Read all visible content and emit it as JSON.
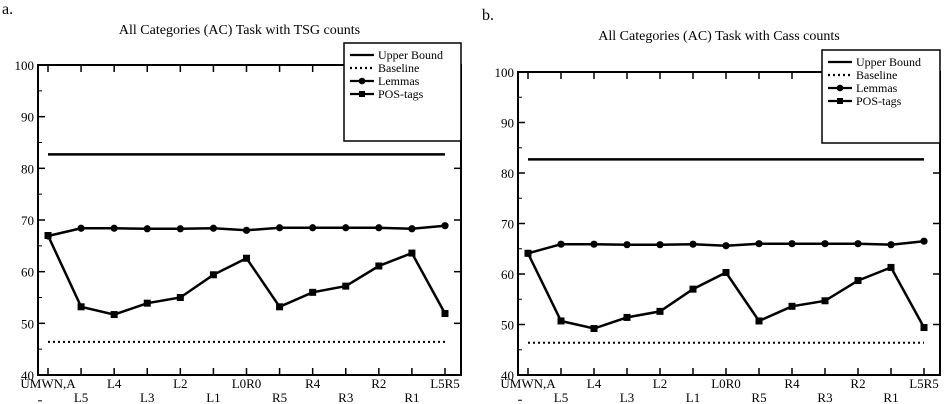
{
  "chart_data": [
    {
      "type": "line",
      "panel_label": "a.",
      "title": "All Categories (AC) Task with TSG counts",
      "xlabel": "",
      "ylabel": "",
      "ylim": [
        40,
        100
      ],
      "yticks": [
        "40",
        "50",
        "60",
        "70",
        "80",
        "90",
        "100"
      ],
      "categories": [
        "UMWN,A",
        "L5",
        "L4",
        "L3",
        "L2",
        "L1",
        "L0R0",
        "R5",
        "R4",
        "R3",
        "R2",
        "R1",
        "L5R5"
      ],
      "legend_position": "top-right",
      "series": [
        {
          "name": "Upper Bound",
          "style": "solid",
          "values": [
            82.7,
            82.7,
            82.7,
            82.7,
            82.7,
            82.7,
            82.7,
            82.7,
            82.7,
            82.7,
            82.7,
            82.7,
            82.7
          ]
        },
        {
          "name": "Baseline",
          "style": "dotted",
          "values": [
            46.4,
            46.4,
            46.4,
            46.4,
            46.4,
            46.4,
            46.4,
            46.4,
            46.4,
            46.4,
            46.4,
            46.4,
            46.4
          ]
        },
        {
          "name": "Lemmas",
          "marker": "circle",
          "values": [
            66.9,
            68.4,
            68.4,
            68.3,
            68.3,
            68.4,
            68.0,
            68.5,
            68.5,
            68.5,
            68.5,
            68.3,
            68.9
          ]
        },
        {
          "name": "POS-tags",
          "marker": "square",
          "values": [
            67.0,
            53.2,
            51.7,
            53.9,
            55.0,
            59.4,
            62.6,
            53.2,
            56.0,
            57.2,
            61.1,
            63.6,
            51.9
          ]
        }
      ]
    },
    {
      "type": "line",
      "panel_label": "b.",
      "title": "All Categories (AC) Task with Cass counts",
      "xlabel": "",
      "ylabel": "",
      "ylim": [
        40,
        100
      ],
      "yticks": [
        "40",
        "50",
        "60",
        "70",
        "80",
        "90",
        "100"
      ],
      "categories": [
        "UMWN,A",
        "L5",
        "L4",
        "L3",
        "L2",
        "L1",
        "L0R0",
        "R5",
        "R4",
        "R3",
        "R2",
        "R1",
        "L5R5"
      ],
      "legend_position": "top-right",
      "series": [
        {
          "name": "Upper Bound",
          "style": "solid",
          "values": [
            82.7,
            82.7,
            82.7,
            82.7,
            82.7,
            82.7,
            82.7,
            82.7,
            82.7,
            82.7,
            82.7,
            82.7,
            82.7
          ]
        },
        {
          "name": "Baseline",
          "style": "dotted",
          "values": [
            46.4,
            46.4,
            46.4,
            46.4,
            46.4,
            46.4,
            46.4,
            46.4,
            46.4,
            46.4,
            46.4,
            46.4,
            46.4
          ]
        },
        {
          "name": "Lemmas",
          "marker": "circle",
          "values": [
            64.1,
            65.9,
            65.9,
            65.8,
            65.8,
            65.9,
            65.6,
            66.0,
            66.0,
            66.0,
            66.0,
            65.8,
            66.5
          ]
        },
        {
          "name": "POS-tags",
          "marker": "square",
          "values": [
            64.1,
            50.7,
            49.2,
            51.4,
            52.6,
            57.0,
            60.3,
            50.7,
            53.6,
            54.7,
            58.7,
            61.3,
            49.4
          ]
        }
      ]
    }
  ]
}
